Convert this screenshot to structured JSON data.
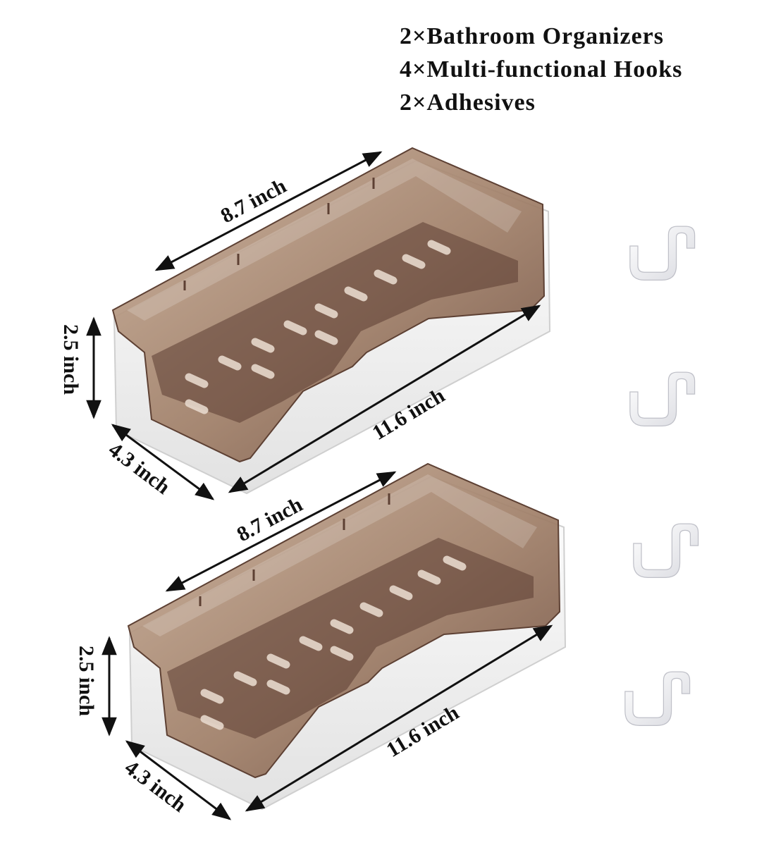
{
  "contents": [
    "2×Bathroom Organizers",
    "4×Multi-functional Hooks",
    "2×Adhesives"
  ],
  "dimensions": {
    "width": "8.7 inch",
    "length": "11.6 inch",
    "depth": "4.3 inch",
    "height": "2.5 inch"
  },
  "colors": {
    "tray": "#7a5848",
    "tray_light": "#b69a86",
    "base": "#ffffff",
    "base_shadow": "#e4e4e4",
    "hook": "#f3f3f5",
    "ink": "#111111"
  }
}
